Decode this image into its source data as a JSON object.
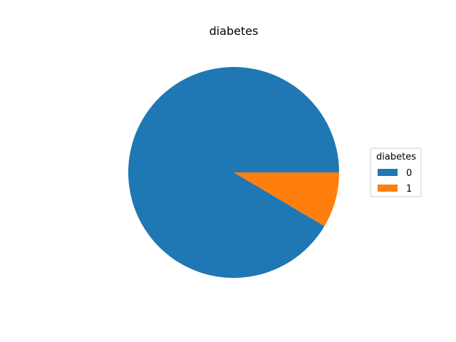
{
  "chart_data": {
    "type": "pie",
    "title": "diabetes",
    "legend_title": "diabetes",
    "legend_position": "right",
    "categories": [
      "0",
      "1"
    ],
    "values": [
      91.5,
      8.5
    ],
    "colors": [
      "#1f77b4",
      "#ff7f0e"
    ]
  }
}
